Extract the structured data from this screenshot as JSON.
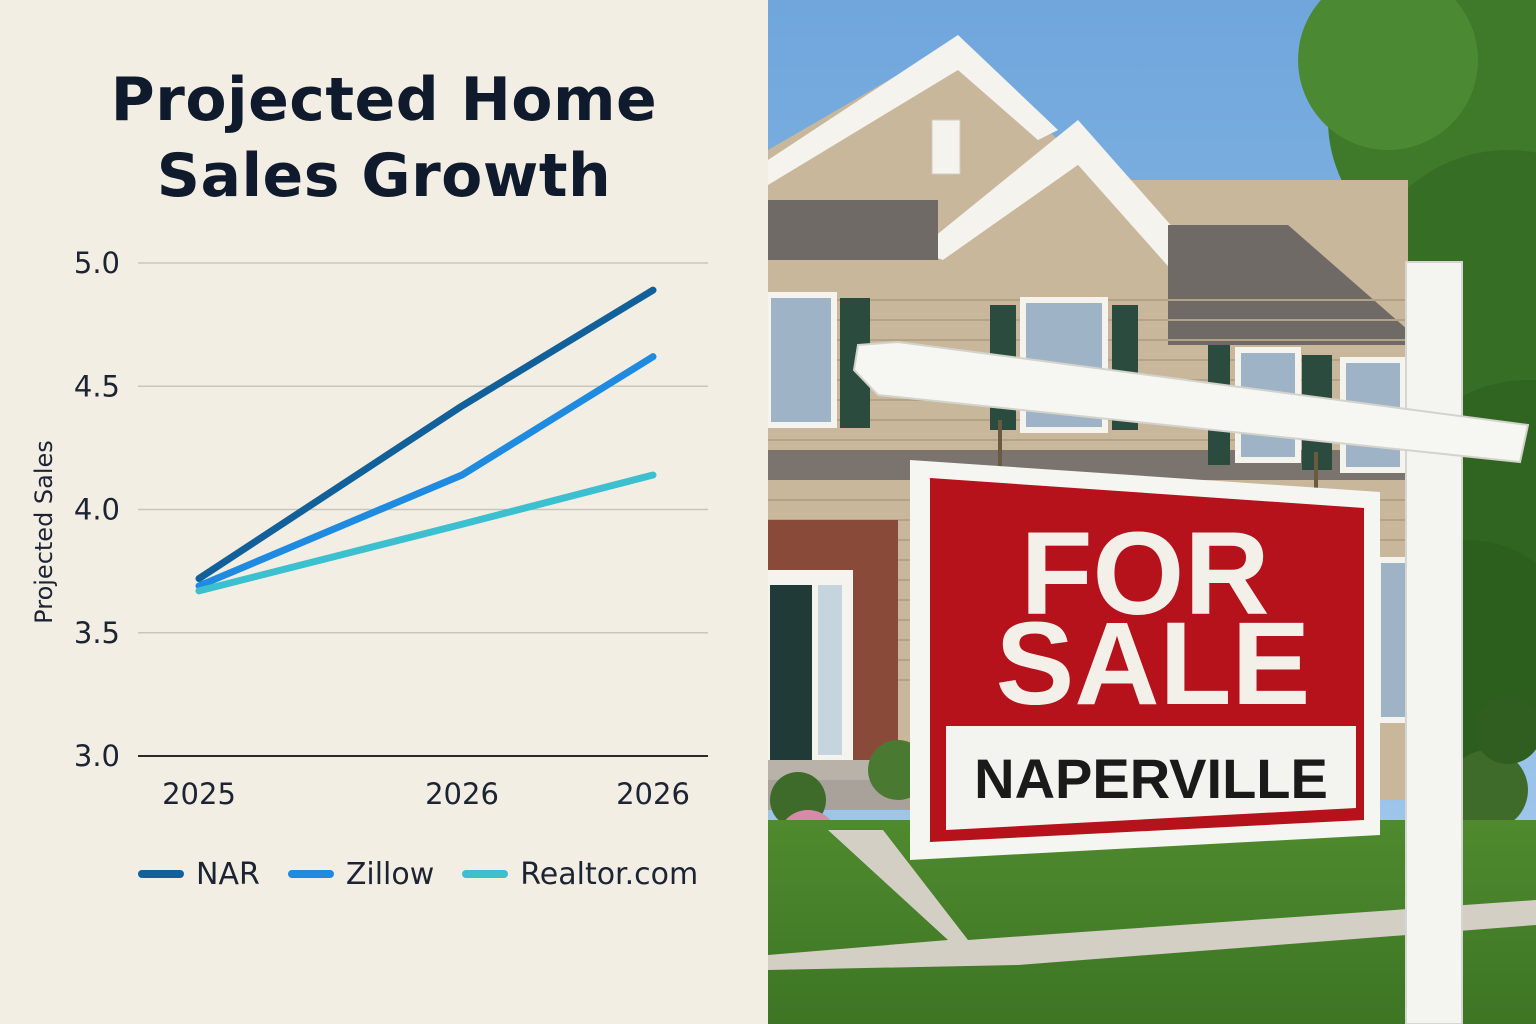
{
  "title_lines": [
    "Projected Home",
    "Sales Growth"
  ],
  "chart_data": {
    "type": "line",
    "title": "Projected Home Sales Growth",
    "ylabel": "Projected Sales",
    "xlabel": "",
    "x_ticks": [
      "2025",
      "2026",
      "2026"
    ],
    "y_ticks": [
      "5.0",
      "4.5",
      "4.0",
      "3.5",
      "3.0"
    ],
    "ylim": [
      3.0,
      5.0
    ],
    "grid": true,
    "legend_position": "bottom",
    "x": [
      "2025",
      "2026",
      "2026"
    ],
    "series": [
      {
        "name": "NAR",
        "color": "#12609a",
        "values": [
          3.72,
          4.42,
          4.89
        ]
      },
      {
        "name": "Zillow",
        "color": "#1e8be0",
        "values": [
          3.69,
          4.14,
          4.62
        ]
      },
      {
        "name": "Realtor.com",
        "color": "#3cbfcf",
        "values": [
          3.67,
          3.94,
          4.14
        ]
      }
    ]
  },
  "sign": {
    "line1": "FOR",
    "line2": "SALE",
    "city": "NAPERVILLE"
  },
  "colors": {
    "background": "#f2eee4",
    "sign_red": "#b5121b",
    "sky": "#8fbde6"
  }
}
